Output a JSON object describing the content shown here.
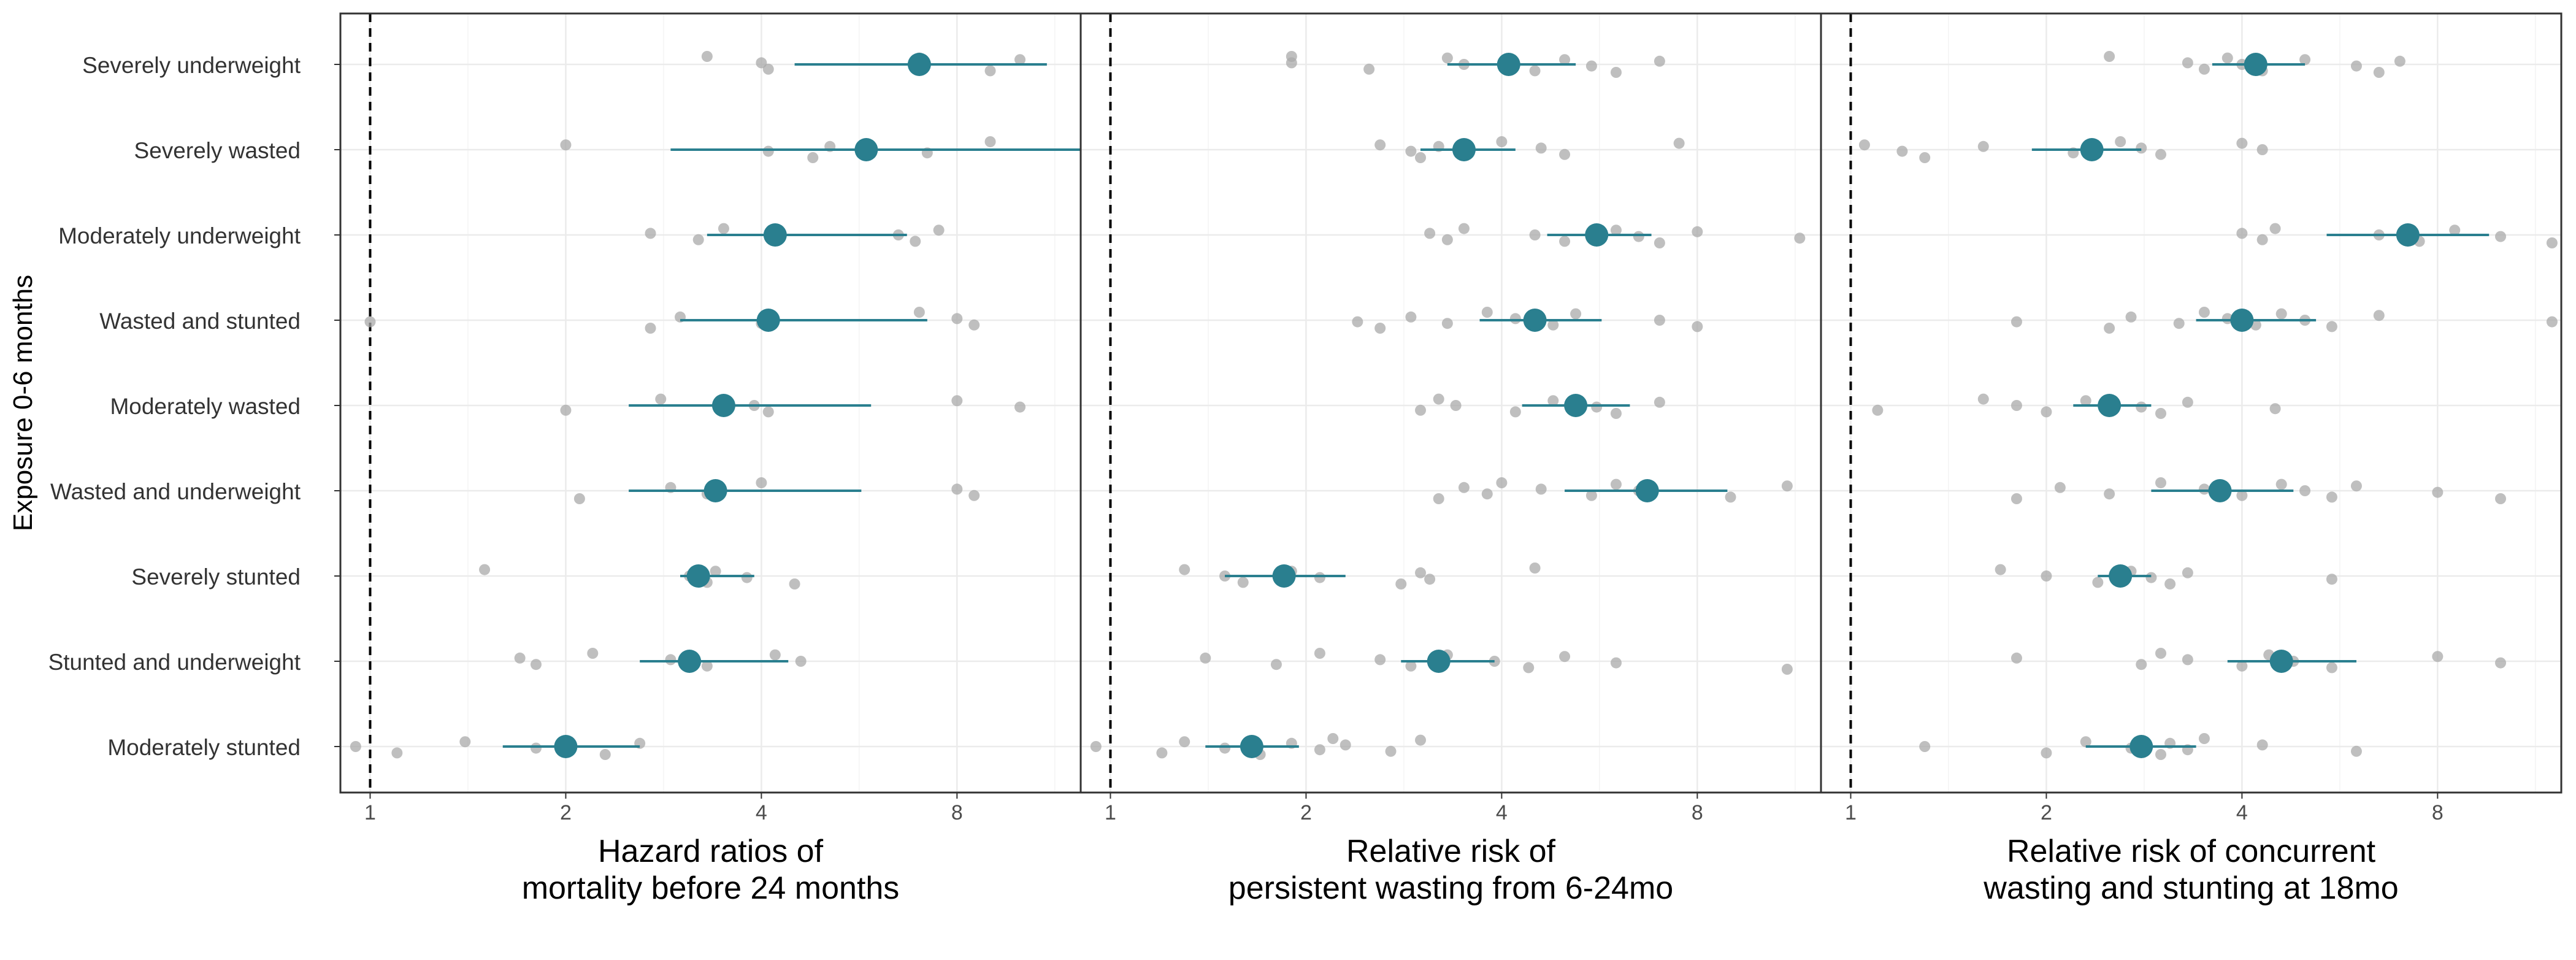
{
  "chart_data": {
    "type": "scatter",
    "description_of_layout": "",
    "y_axis_title": "Exposure 0-6 months",
    "categories": [
      "Severely underweight",
      "Severely wasted",
      "Moderately underweight",
      "Wasted and stunted",
      "Moderately wasted",
      "Wasted and underweight",
      "Severely stunted",
      "Stunted and underweight",
      "Moderately stunted"
    ],
    "x_scale": "log2",
    "x_ticks": [
      1,
      2,
      4,
      8
    ],
    "reference_line": 1,
    "point_color": "#2a7f8f",
    "study_point_color": "#a9a9a9",
    "panels": [
      {
        "xlabel": [
          "Hazard ratios of",
          "mortality before 24 months"
        ],
        "xlim": [
          0.9,
          12.4
        ],
        "pooled": [
          {
            "category": "Severely underweight",
            "estimate": 7.0,
            "lower": 4.5,
            "upper": 11.0
          },
          {
            "category": "Severely wasted",
            "estimate": 5.8,
            "lower": 2.9,
            "upper": 12.5
          },
          {
            "category": "Moderately underweight",
            "estimate": 4.2,
            "lower": 3.3,
            "upper": 6.7
          },
          {
            "category": "Wasted and stunted",
            "estimate": 4.1,
            "lower": 3.0,
            "upper": 7.2
          },
          {
            "category": "Moderately wasted",
            "estimate": 3.5,
            "lower": 2.5,
            "upper": 5.9
          },
          {
            "category": "Wasted and underweight",
            "estimate": 3.4,
            "lower": 2.5,
            "upper": 5.7
          },
          {
            "category": "Severely stunted",
            "estimate": 3.2,
            "lower": 3.0,
            "upper": 3.9
          },
          {
            "category": "Stunted and underweight",
            "estimate": 3.1,
            "lower": 2.6,
            "upper": 4.4
          },
          {
            "category": "Moderately stunted",
            "estimate": 2.0,
            "lower": 1.6,
            "upper": 2.6
          }
        ],
        "studies": [
          [
            3.3,
            4.0,
            4.1,
            7.0,
            7.1,
            9.0,
            10.0
          ],
          [
            2.0,
            4.1,
            4.8,
            5.1,
            7.2,
            9.0
          ],
          [
            2.7,
            3.2,
            3.5,
            6.5,
            6.9,
            7.5
          ],
          [
            1.0,
            2.7,
            3.0,
            4.0,
            7.0,
            8.0,
            8.5
          ],
          [
            2.0,
            2.8,
            3.9,
            4.1,
            8.0,
            10.0
          ],
          [
            2.1,
            2.9,
            3.3,
            4.0,
            8.0,
            8.5
          ],
          [
            1.5,
            3.1,
            3.3,
            3.4,
            3.8,
            4.5
          ],
          [
            1.7,
            1.8,
            2.2,
            2.9,
            3.3,
            4.2,
            4.6
          ],
          [
            0.95,
            1.1,
            1.4,
            1.8,
            2.3,
            2.6
          ]
        ]
      },
      {
        "xlabel": [
          "Relative risk of",
          "persistent wasting from 6-24mo"
        ],
        "xlim": [
          0.9,
          12.4
        ],
        "pooled": [
          {
            "category": "Severely underweight",
            "estimate": 4.1,
            "lower": 3.3,
            "upper": 5.2
          },
          {
            "category": "Severely wasted",
            "estimate": 3.5,
            "lower": 3.0,
            "upper": 4.2
          },
          {
            "category": "Moderately underweight",
            "estimate": 5.6,
            "lower": 4.7,
            "upper": 6.8
          },
          {
            "category": "Wasted and stunted",
            "estimate": 4.5,
            "lower": 3.7,
            "upper": 5.7
          },
          {
            "category": "Moderately wasted",
            "estimate": 5.2,
            "lower": 4.3,
            "upper": 6.3
          },
          {
            "category": "Wasted and underweight",
            "estimate": 6.7,
            "lower": 5.0,
            "upper": 8.9
          },
          {
            "category": "Severely stunted",
            "estimate": 1.85,
            "lower": 1.5,
            "upper": 2.3
          },
          {
            "category": "Stunted and underweight",
            "estimate": 3.2,
            "lower": 2.8,
            "upper": 3.9
          },
          {
            "category": "Moderately stunted",
            "estimate": 1.65,
            "lower": 1.4,
            "upper": 1.95
          }
        ],
        "studies": [
          [
            1.9,
            1.9,
            2.5,
            3.3,
            3.5,
            4.5,
            5.0,
            5.5,
            6.0,
            7.0
          ],
          [
            2.6,
            2.9,
            3.0,
            3.2,
            3.5,
            4.0,
            4.6,
            5.0,
            7.5
          ],
          [
            3.1,
            3.3,
            3.5,
            4.5,
            5.0,
            6.0,
            6.5,
            7.0,
            8.0,
            11.5
          ],
          [
            2.4,
            2.6,
            2.9,
            3.3,
            3.8,
            4.2,
            4.8,
            5.2,
            7.0,
            8.0
          ],
          [
            3.0,
            3.2,
            3.4,
            4.2,
            4.8,
            5.6,
            6.0,
            7.0
          ],
          [
            3.2,
            3.5,
            3.8,
            4.0,
            4.6,
            5.5,
            6.0,
            6.5,
            9.0,
            11.0
          ],
          [
            1.3,
            1.5,
            1.6,
            1.9,
            2.1,
            2.8,
            3.0,
            3.1,
            4.5
          ],
          [
            1.4,
            1.8,
            2.1,
            2.6,
            2.9,
            3.3,
            3.9,
            4.4,
            5.0,
            6.0,
            11.0
          ],
          [
            0.95,
            1.2,
            1.3,
            1.5,
            1.7,
            1.9,
            2.1,
            2.2,
            2.3,
            2.7,
            3.0
          ]
        ]
      },
      {
        "xlabel": [
          "Relative risk of concurrent",
          "wasting and stunting at 18mo"
        ],
        "xlim": [
          0.9,
          12.4
        ],
        "pooled": [
          {
            "category": "Severely underweight",
            "estimate": 4.2,
            "lower": 3.6,
            "upper": 5.0
          },
          {
            "category": "Severely wasted",
            "estimate": 2.35,
            "lower": 1.9,
            "upper": 2.8
          },
          {
            "category": "Moderately underweight",
            "estimate": 7.2,
            "lower": 5.4,
            "upper": 9.6
          },
          {
            "category": "Wasted and stunted",
            "estimate": 4.0,
            "lower": 3.4,
            "upper": 5.2
          },
          {
            "category": "Moderately wasted",
            "estimate": 2.5,
            "lower": 2.2,
            "upper": 2.9
          },
          {
            "category": "Wasted and underweight",
            "estimate": 3.7,
            "lower": 2.9,
            "upper": 4.8
          },
          {
            "category": "Severely stunted",
            "estimate": 2.6,
            "lower": 2.4,
            "upper": 2.9
          },
          {
            "category": "Stunted and underweight",
            "estimate": 4.6,
            "lower": 3.8,
            "upper": 6.0
          },
          {
            "category": "Moderately stunted",
            "estimate": 2.8,
            "lower": 2.3,
            "upper": 3.4
          }
        ],
        "studies": [
          [
            2.5,
            3.3,
            3.5,
            3.8,
            4.0,
            4.3,
            5.0,
            6.0,
            6.5,
            7.0
          ],
          [
            1.05,
            1.2,
            1.3,
            1.6,
            2.2,
            2.6,
            2.8,
            3.0,
            4.0,
            4.3
          ],
          [
            4.0,
            4.3,
            4.5,
            6.5,
            7.5,
            8.5,
            10.0,
            12.0
          ],
          [
            1.8,
            2.5,
            2.7,
            3.2,
            3.5,
            3.8,
            4.2,
            4.6,
            5.0,
            5.5,
            6.5,
            12.0
          ],
          [
            1.1,
            1.6,
            1.8,
            2.0,
            2.3,
            2.8,
            3.0,
            3.3,
            4.5
          ],
          [
            1.8,
            2.1,
            2.5,
            3.0,
            3.5,
            4.0,
            4.6,
            5.0,
            5.5,
            6.0,
            8.0,
            10.0
          ],
          [
            1.7,
            2.0,
            2.4,
            2.7,
            2.9,
            3.1,
            3.3,
            5.5
          ],
          [
            1.8,
            2.8,
            3.0,
            3.3,
            4.0,
            4.4,
            4.8,
            5.5,
            8.0,
            10.0
          ],
          [
            1.3,
            2.0,
            2.3,
            2.7,
            3.0,
            3.1,
            3.3,
            3.5,
            4.3,
            6.0
          ]
        ]
      }
    ]
  }
}
